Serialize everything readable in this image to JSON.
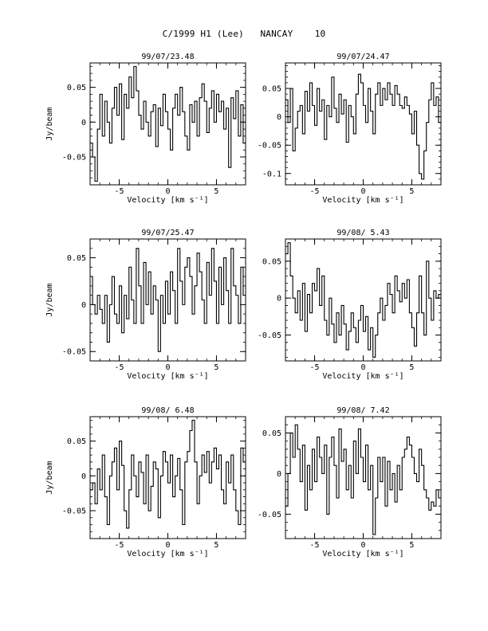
{
  "page_title": "C/1999 H1 (Lee)   NANCAY    10",
  "chart_data": [
    {
      "type": "line",
      "title": "99/07/23.48",
      "xlabel": "Velocity [km s⁻¹]",
      "ylabel": "Jy/beam",
      "xlim": [
        -8,
        8
      ],
      "ylim": [
        -0.09,
        0.085
      ],
      "xticks": [
        -5,
        0,
        5
      ],
      "yticks": [
        -0.05,
        0,
        0.05
      ],
      "ytick_labels": [
        "-0.05",
        "0",
        "0.05"
      ],
      "x": [
        -8.0,
        -7.75,
        -7.5,
        -7.25,
        -7.0,
        -6.75,
        -6.5,
        -6.25,
        -6.0,
        -5.75,
        -5.5,
        -5.25,
        -5.0,
        -4.75,
        -4.5,
        -4.25,
        -4.0,
        -3.75,
        -3.5,
        -3.25,
        -3.0,
        -2.75,
        -2.5,
        -2.25,
        -2.0,
        -1.75,
        -1.5,
        -1.25,
        -1.0,
        -0.75,
        -0.5,
        -0.25,
        0.0,
        0.25,
        0.5,
        0.75,
        1.0,
        1.25,
        1.5,
        1.75,
        2.0,
        2.25,
        2.5,
        2.75,
        3.0,
        3.25,
        3.5,
        3.75,
        4.0,
        4.25,
        4.5,
        4.75,
        5.0,
        5.25,
        5.5,
        5.75,
        6.0,
        6.25,
        6.5,
        6.75,
        7.0,
        7.25,
        7.5,
        7.75
      ],
      "y": [
        -0.03,
        -0.05,
        -0.085,
        -0.01,
        0.04,
        -0.02,
        0.03,
        0.0,
        -0.03,
        0.02,
        0.05,
        0.01,
        0.055,
        -0.025,
        0.04,
        0.02,
        0.065,
        0.035,
        0.08,
        0.045,
        0.01,
        -0.01,
        0.03,
        0.0,
        -0.02,
        0.015,
        0.025,
        -0.035,
        0.02,
        -0.005,
        0.04,
        0.015,
        -0.01,
        -0.04,
        0.02,
        0.04,
        0.01,
        0.05,
        0.015,
        -0.02,
        -0.04,
        0.025,
        0.0,
        0.03,
        -0.02,
        0.035,
        0.055,
        0.03,
        -0.015,
        0.02,
        0.045,
        0.0,
        0.04,
        0.015,
        0.03,
        -0.01,
        0.02,
        -0.065,
        0.035,
        0.005,
        0.045,
        -0.02,
        0.025,
        -0.03
      ]
    },
    {
      "type": "line",
      "title": "99/07/24.47",
      "xlabel": "Velocity [km s⁻¹]",
      "ylabel": "",
      "xlim": [
        -8,
        8
      ],
      "ylim": [
        -0.12,
        0.095
      ],
      "xticks": [
        -5,
        0,
        5
      ],
      "yticks": [
        -0.1,
        -0.05,
        0,
        0.05
      ],
      "ytick_labels": [
        "-0.1",
        "-0.05",
        "0",
        "0.05"
      ],
      "x": [
        -8.0,
        -7.75,
        -7.5,
        -7.25,
        -7.0,
        -6.75,
        -6.5,
        -6.25,
        -6.0,
        -5.75,
        -5.5,
        -5.25,
        -5.0,
        -4.75,
        -4.5,
        -4.25,
        -4.0,
        -3.75,
        -3.5,
        -3.25,
        -3.0,
        -2.75,
        -2.5,
        -2.25,
        -2.0,
        -1.75,
        -1.5,
        -1.25,
        -1.0,
        -0.75,
        -0.5,
        -0.25,
        0.0,
        0.25,
        0.5,
        0.75,
        1.0,
        1.25,
        1.5,
        1.75,
        2.0,
        2.25,
        2.5,
        2.75,
        3.0,
        3.25,
        3.5,
        3.75,
        4.0,
        4.25,
        4.5,
        4.75,
        5.0,
        5.25,
        5.5,
        5.75,
        6.0,
        6.25,
        6.5,
        6.75,
        7.0,
        7.25,
        7.5,
        7.75
      ],
      "y": [
        0.03,
        -0.01,
        0.05,
        -0.06,
        -0.02,
        0.01,
        0.02,
        -0.03,
        0.045,
        0.01,
        0.06,
        0.02,
        -0.015,
        0.05,
        0.01,
        0.03,
        -0.04,
        0.02,
        0.0,
        0.07,
        0.015,
        -0.01,
        0.04,
        0.005,
        0.03,
        -0.045,
        0.02,
        0.0,
        -0.03,
        0.04,
        0.075,
        0.06,
        0.02,
        -0.01,
        0.05,
        0.01,
        -0.03,
        0.04,
        0.06,
        0.02,
        0.05,
        0.03,
        0.06,
        0.04,
        0.02,
        0.055,
        0.04,
        0.02,
        0.015,
        0.035,
        0.02,
        0.005,
        -0.03,
        0.01,
        -0.05,
        -0.1,
        -0.11,
        -0.06,
        -0.01,
        0.03,
        0.06,
        0.02,
        0.035,
        -0.01
      ]
    },
    {
      "type": "line",
      "title": "99/07/25.47",
      "xlabel": "Velocity [km s⁻¹]",
      "ylabel": "Jy/beam",
      "xlim": [
        -8,
        8
      ],
      "ylim": [
        -0.06,
        0.07
      ],
      "xticks": [
        -5,
        0,
        5
      ],
      "yticks": [
        -0.05,
        0,
        0.05
      ],
      "ytick_labels": [
        "-0.05",
        "0",
        "0.05"
      ],
      "x": [
        -8.0,
        -7.75,
        -7.5,
        -7.25,
        -7.0,
        -6.75,
        -6.5,
        -6.25,
        -6.0,
        -5.75,
        -5.5,
        -5.25,
        -5.0,
        -4.75,
        -4.5,
        -4.25,
        -4.0,
        -3.75,
        -3.5,
        -3.25,
        -3.0,
        -2.75,
        -2.5,
        -2.25,
        -2.0,
        -1.75,
        -1.5,
        -1.25,
        -1.0,
        -0.75,
        -0.5,
        -0.25,
        0.0,
        0.25,
        0.5,
        0.75,
        1.0,
        1.25,
        1.5,
        1.75,
        2.0,
        2.25,
        2.5,
        2.75,
        3.0,
        3.25,
        3.5,
        3.75,
        4.0,
        4.25,
        4.5,
        4.75,
        5.0,
        5.25,
        5.5,
        5.75,
        6.0,
        6.25,
        6.5,
        6.75,
        7.0,
        7.25,
        7.5,
        7.75
      ],
      "y": [
        0.03,
        0.0,
        -0.01,
        0.01,
        -0.005,
        -0.02,
        0.01,
        -0.04,
        0.0,
        0.03,
        -0.01,
        -0.02,
        0.02,
        -0.03,
        0.01,
        -0.015,
        0.04,
        0.005,
        -0.02,
        0.06,
        0.02,
        -0.02,
        0.045,
        0.0,
        0.035,
        -0.01,
        0.02,
        0.005,
        -0.05,
        0.01,
        -0.02,
        0.025,
        -0.01,
        0.035,
        0.015,
        -0.02,
        0.06,
        0.025,
        0.0,
        0.04,
        0.05,
        0.03,
        -0.01,
        0.02,
        0.055,
        0.035,
        0.005,
        -0.02,
        0.045,
        0.01,
        0.06,
        0.025,
        -0.02,
        0.04,
        0.0,
        0.05,
        0.015,
        -0.02,
        0.06,
        0.02,
        0.01,
        -0.02,
        0.04,
        0.01
      ]
    },
    {
      "type": "line",
      "title": "99/08/ 5.43",
      "xlabel": "Velocity [km s⁻¹]",
      "ylabel": "",
      "xlim": [
        -8,
        8
      ],
      "ylim": [
        -0.085,
        0.08
      ],
      "xticks": [
        -5,
        0,
        5
      ],
      "yticks": [
        -0.05,
        0,
        0.05
      ],
      "ytick_labels": [
        "-0.05",
        "0",
        "0.05"
      ],
      "x": [
        -8.0,
        -7.75,
        -7.5,
        -7.25,
        -7.0,
        -6.75,
        -6.5,
        -6.25,
        -6.0,
        -5.75,
        -5.5,
        -5.25,
        -5.0,
        -4.75,
        -4.5,
        -4.25,
        -4.0,
        -3.75,
        -3.5,
        -3.25,
        -3.0,
        -2.75,
        -2.5,
        -2.25,
        -2.0,
        -1.75,
        -1.5,
        -1.25,
        -1.0,
        -0.75,
        -0.5,
        -0.25,
        0.0,
        0.25,
        0.5,
        0.75,
        1.0,
        1.25,
        1.5,
        1.75,
        2.0,
        2.25,
        2.5,
        2.75,
        3.0,
        3.25,
        3.5,
        3.75,
        4.0,
        4.25,
        4.5,
        4.75,
        5.0,
        5.25,
        5.5,
        5.75,
        6.0,
        6.25,
        6.5,
        6.75,
        7.0,
        7.25,
        7.5,
        7.75
      ],
      "y": [
        0.06,
        0.075,
        0.03,
        0.0,
        -0.02,
        0.01,
        -0.03,
        0.02,
        -0.045,
        0.005,
        -0.02,
        0.02,
        0.01,
        0.04,
        -0.01,
        0.03,
        -0.03,
        -0.05,
        0.0,
        -0.035,
        -0.06,
        -0.02,
        -0.05,
        -0.01,
        -0.035,
        -0.07,
        -0.045,
        -0.02,
        -0.04,
        -0.06,
        -0.03,
        -0.01,
        -0.045,
        -0.025,
        -0.07,
        -0.04,
        -0.08,
        -0.05,
        -0.02,
        0.0,
        -0.03,
        -0.01,
        0.02,
        0.005,
        -0.02,
        0.03,
        0.01,
        -0.005,
        0.02,
        0.0,
        0.025,
        -0.02,
        -0.04,
        -0.065,
        -0.02,
        0.03,
        -0.02,
        -0.05,
        0.05,
        0.0,
        -0.03,
        0.01,
        0.0,
        0.005
      ]
    },
    {
      "type": "line",
      "title": "99/08/ 6.48",
      "xlabel": "Velocity [km s⁻¹]",
      "ylabel": "Jy/beam",
      "xlim": [
        -8,
        8
      ],
      "ylim": [
        -0.09,
        0.085
      ],
      "xticks": [
        -5,
        0,
        5
      ],
      "yticks": [
        -0.05,
        0,
        0.05
      ],
      "ytick_labels": [
        "-0.05",
        "0",
        "0.05"
      ],
      "x": [
        -8.0,
        -7.75,
        -7.5,
        -7.25,
        -7.0,
        -6.75,
        -6.5,
        -6.25,
        -6.0,
        -5.75,
        -5.5,
        -5.25,
        -5.0,
        -4.75,
        -4.5,
        -4.25,
        -4.0,
        -3.75,
        -3.5,
        -3.25,
        -3.0,
        -2.75,
        -2.5,
        -2.25,
        -2.0,
        -1.75,
        -1.5,
        -1.25,
        -1.0,
        -0.75,
        -0.5,
        -0.25,
        0.0,
        0.25,
        0.5,
        0.75,
        1.0,
        1.25,
        1.5,
        1.75,
        2.0,
        2.25,
        2.5,
        2.75,
        3.0,
        3.25,
        3.5,
        3.75,
        4.0,
        4.25,
        4.5,
        4.75,
        5.0,
        5.25,
        5.5,
        5.75,
        6.0,
        6.25,
        6.5,
        6.75,
        7.0,
        7.25,
        7.5,
        7.75
      ],
      "y": [
        -0.02,
        -0.01,
        -0.04,
        0.01,
        -0.02,
        0.03,
        -0.03,
        -0.07,
        0.0,
        0.02,
        0.04,
        -0.02,
        0.05,
        0.015,
        -0.05,
        -0.075,
        -0.02,
        0.03,
        0.0,
        -0.03,
        0.02,
        0.005,
        -0.04,
        0.03,
        -0.05,
        -0.015,
        0.02,
        0.01,
        -0.06,
        0.0,
        0.035,
        0.02,
        -0.01,
        0.03,
        -0.03,
        0.0,
        0.025,
        -0.02,
        -0.07,
        0.02,
        0.035,
        0.065,
        0.08,
        0.02,
        -0.04,
        0.0,
        0.03,
        0.005,
        0.035,
        -0.01,
        0.02,
        0.04,
        0.01,
        0.03,
        -0.02,
        -0.04,
        0.02,
        -0.01,
        0.03,
        -0.02,
        -0.05,
        -0.07,
        0.04,
        0.02
      ]
    },
    {
      "type": "line",
      "title": "99/08/ 7.42",
      "xlabel": "Velocity [km s⁻¹]",
      "ylabel": "",
      "xlim": [
        -8,
        8
      ],
      "ylim": [
        -0.08,
        0.07
      ],
      "xticks": [
        -5,
        0,
        5
      ],
      "yticks": [
        -0.05,
        0,
        0.05
      ],
      "ytick_labels": [
        "-0.05",
        "0",
        "0.05"
      ],
      "x": [
        -8.0,
        -7.75,
        -7.5,
        -7.25,
        -7.0,
        -6.75,
        -6.5,
        -6.25,
        -6.0,
        -5.75,
        -5.5,
        -5.25,
        -5.0,
        -4.75,
        -4.5,
        -4.25,
        -4.0,
        -3.75,
        -3.5,
        -3.25,
        -3.0,
        -2.75,
        -2.5,
        -2.25,
        -2.0,
        -1.75,
        -1.5,
        -1.25,
        -1.0,
        -0.75,
        -0.5,
        -0.25,
        0.0,
        0.25,
        0.5,
        0.75,
        1.0,
        1.25,
        1.5,
        1.75,
        2.0,
        2.25,
        2.5,
        2.75,
        3.0,
        3.25,
        3.5,
        3.75,
        4.0,
        4.25,
        4.5,
        4.75,
        5.0,
        5.25,
        5.5,
        5.75,
        6.0,
        6.25,
        6.5,
        6.75,
        7.0,
        7.25,
        7.5,
        7.75
      ],
      "y": [
        -0.04,
        0.0,
        0.05,
        0.02,
        0.06,
        0.03,
        -0.01,
        0.035,
        -0.045,
        0.01,
        -0.02,
        0.03,
        -0.01,
        0.045,
        0.02,
        0.0,
        0.035,
        -0.05,
        0.02,
        0.045,
        0.01,
        -0.03,
        0.055,
        0.015,
        0.03,
        -0.02,
        0.01,
        -0.03,
        0.04,
        0.0,
        0.055,
        0.02,
        -0.01,
        0.035,
        -0.02,
        0.01,
        -0.075,
        -0.03,
        0.02,
        -0.01,
        0.02,
        -0.04,
        0.015,
        -0.02,
        0.0,
        -0.035,
        0.01,
        -0.02,
        0.02,
        0.03,
        0.045,
        0.035,
        0.02,
        0.0,
        -0.01,
        0.03,
        0.01,
        -0.02,
        -0.03,
        -0.045,
        -0.035,
        -0.04,
        -0.02,
        -0.03
      ]
    }
  ]
}
